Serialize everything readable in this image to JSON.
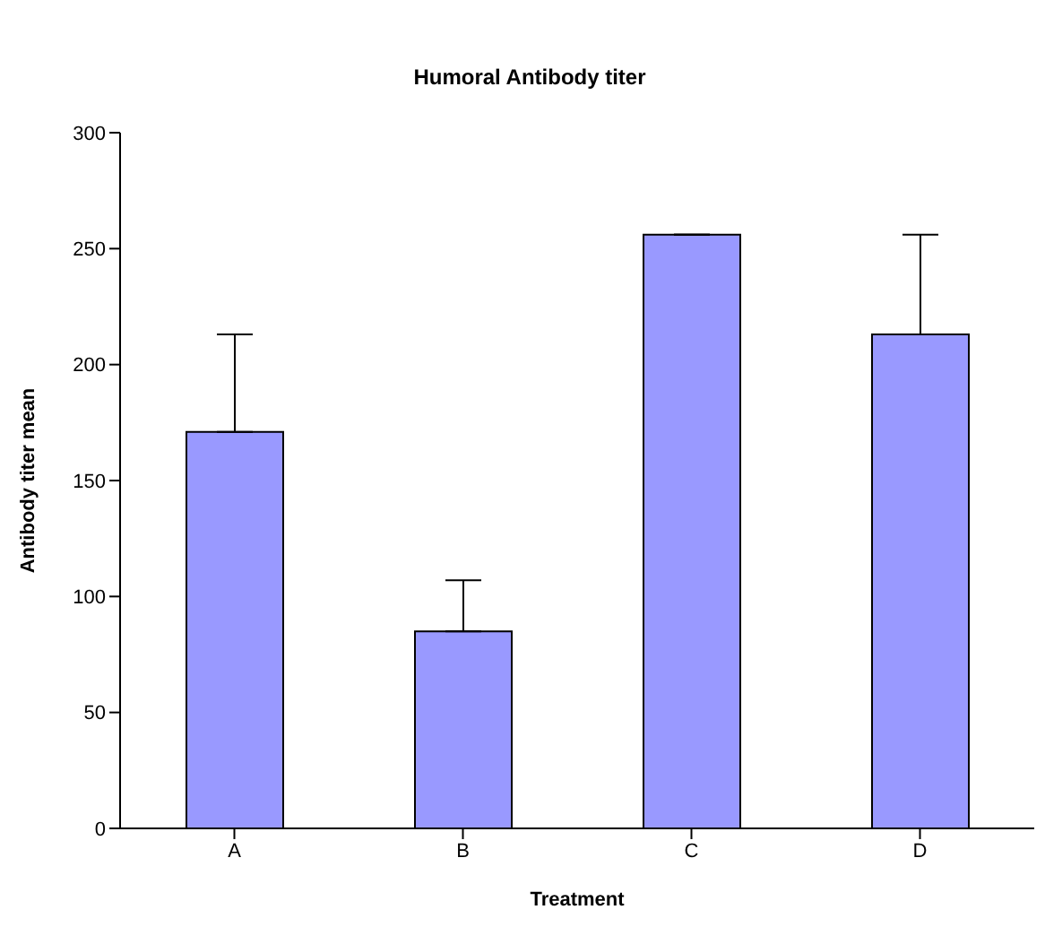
{
  "chart_data": {
    "type": "bar",
    "title": "Humoral Antibody titer",
    "xlabel": "Treatment",
    "ylabel": "Antibody titer mean",
    "categories": [
      "A",
      "B",
      "C",
      "D"
    ],
    "values": [
      171,
      85,
      256,
      213
    ],
    "color": "#9999ff",
    "errors": [
      [
        171,
        213
      ],
      [
        85,
        107
      ],
      [
        256,
        256
      ],
      [
        213,
        256
      ]
    ],
    "ylim": [
      0,
      300
    ],
    "yticks": [
      0,
      50,
      100,
      150,
      200,
      250,
      300
    ],
    "grid": false,
    "legend": false
  }
}
